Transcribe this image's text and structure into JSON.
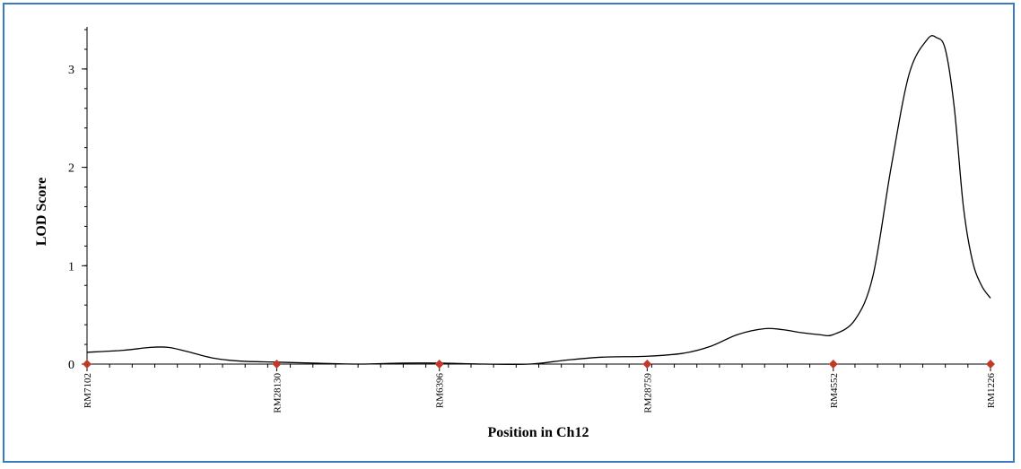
{
  "colors": {
    "frame_border": "#3a7cc0",
    "marker": "#c0392b",
    "curve": "#000000"
  },
  "chart_data": {
    "type": "line",
    "xlabel": "Position in Ch12",
    "ylabel": "LOD Score",
    "ylim": [
      0,
      3.4
    ],
    "yticks": [
      0,
      1,
      2,
      3
    ],
    "xlim": [
      0,
      100
    ],
    "grid": false,
    "markers": [
      {
        "label": "RM7102",
        "x": 0
      },
      {
        "label": "RM28130",
        "x": 21
      },
      {
        "label": "RM6396",
        "x": 39
      },
      {
        "label": "RM28759",
        "x": 62
      },
      {
        "label": "RM4552",
        "x": 82.6
      },
      {
        "label": "RM1226",
        "x": 100
      }
    ],
    "series": [
      {
        "points": [
          [
            0,
            0.12
          ],
          [
            4,
            0.14
          ],
          [
            7,
            0.17
          ],
          [
            9,
            0.17
          ],
          [
            11,
            0.13
          ],
          [
            14,
            0.06
          ],
          [
            17,
            0.03
          ],
          [
            21,
            0.02
          ],
          [
            25,
            0.01
          ],
          [
            30,
            0.0
          ],
          [
            35,
            0.01
          ],
          [
            39,
            0.01
          ],
          [
            44,
            0.0
          ],
          [
            49,
            0.0
          ],
          [
            53,
            0.04
          ],
          [
            57,
            0.07
          ],
          [
            62,
            0.08
          ],
          [
            66,
            0.11
          ],
          [
            69,
            0.18
          ],
          [
            72,
            0.3
          ],
          [
            75,
            0.36
          ],
          [
            77,
            0.35
          ],
          [
            79,
            0.32
          ],
          [
            81,
            0.3
          ],
          [
            82.6,
            0.3
          ],
          [
            85,
            0.45
          ],
          [
            87,
            0.9
          ],
          [
            89,
            2.0
          ],
          [
            91,
            2.95
          ],
          [
            93,
            3.3
          ],
          [
            94,
            3.32
          ],
          [
            95,
            3.2
          ],
          [
            96,
            2.6
          ],
          [
            97,
            1.6
          ],
          [
            98,
            1.05
          ],
          [
            99,
            0.8
          ],
          [
            100,
            0.67
          ]
        ]
      }
    ]
  }
}
